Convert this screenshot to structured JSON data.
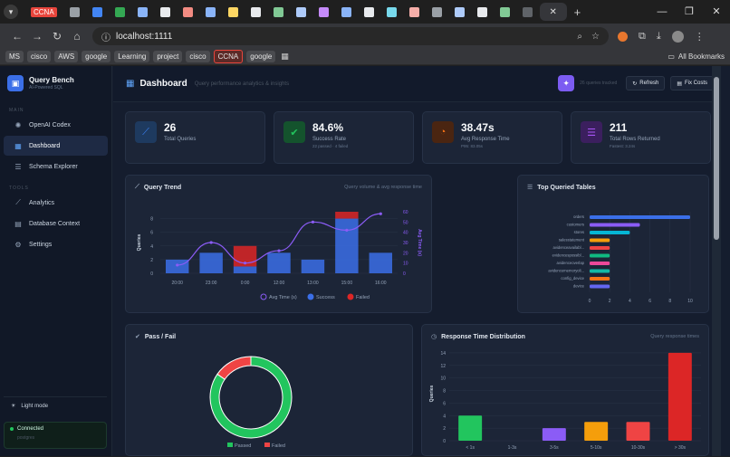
{
  "browser": {
    "tabs": [
      {
        "label": "CCNA",
        "type": "ccna"
      },
      {
        "label": "",
        "type": "site"
      },
      {
        "label": "",
        "type": "site"
      },
      {
        "label": "",
        "type": "site"
      },
      {
        "label": "",
        "type": "site"
      },
      {
        "label": "",
        "type": "site"
      },
      {
        "label": "",
        "type": "site"
      },
      {
        "label": "",
        "type": "site"
      },
      {
        "label": "",
        "type": "site"
      },
      {
        "label": "",
        "type": "site"
      },
      {
        "label": "",
        "type": "site"
      },
      {
        "label": "",
        "type": "site"
      },
      {
        "label": "",
        "type": "site"
      },
      {
        "label": "",
        "type": "site"
      },
      {
        "label": "",
        "type": "site"
      },
      {
        "label": "",
        "type": "site"
      },
      {
        "label": "",
        "type": "site"
      },
      {
        "label": "",
        "type": "site"
      },
      {
        "label": "",
        "type": "site"
      },
      {
        "label": "",
        "type": "site"
      },
      {
        "label": "",
        "type": "site"
      },
      {
        "label": "",
        "type": "site"
      }
    ],
    "url": "localhost:1111",
    "bookmarks": [
      "MS",
      "cisco",
      "AWS",
      "google",
      "Learning",
      "project",
      "cisco",
      "CCNA",
      "google"
    ],
    "all_bookmarks": "All Bookmarks"
  },
  "sidebar": {
    "brand_title": "Query Bench",
    "brand_subtitle": "AI-Powered SQL",
    "main_label": "MAIN",
    "tools_label": "TOOLS",
    "main_items": [
      {
        "label": "OpenAI Codex",
        "icon": "robot-icon"
      },
      {
        "label": "Dashboard",
        "icon": "grid-icon",
        "active": true
      },
      {
        "label": "Schema Explorer",
        "icon": "database-icon"
      }
    ],
    "tool_items": [
      {
        "label": "Analytics",
        "icon": "chart-icon"
      },
      {
        "label": "Database Context",
        "icon": "document-icon"
      },
      {
        "label": "Settings",
        "icon": "gear-icon"
      }
    ],
    "light_mode": "Light mode",
    "connection_status": "Connected",
    "connection_db": "postgres"
  },
  "header": {
    "title": "Dashboard",
    "subtitle": "Query performance analytics & insights",
    "queries_tracked": "26 queries tracked",
    "refresh": "Refresh",
    "fix_costs": "Fix Costs"
  },
  "stats": [
    {
      "value": "26",
      "label": "Total Queries",
      "sub": "",
      "color": "#3b82f6",
      "bg": "#1e3a5f",
      "icon": "chart-line-icon"
    },
    {
      "value": "84.6%",
      "label": "Success Rate",
      "sub": "22 passed · 4 failed",
      "color": "#22c55e",
      "bg": "#14532d",
      "icon": "check-icon"
    },
    {
      "value": "38.47s",
      "label": "Avg Response Time",
      "sub": "P95: 83.05s",
      "color": "#f97316",
      "bg": "#4a2511",
      "icon": "speedometer-icon"
    },
    {
      "value": "211",
      "label": "Total Rows Returned",
      "sub": "Fastest: 3.24s",
      "color": "#a855f7",
      "bg": "#3b1f5e",
      "icon": "list-icon"
    }
  ],
  "query_trend": {
    "title": "Query Trend",
    "subtitle": "Query volume & avg response time",
    "chart_data": {
      "type": "bar",
      "categories": [
        "20:00",
        "23:00",
        "0:00",
        "12:00",
        "13:00",
        "15:00",
        "16:00"
      ],
      "series": [
        {
          "name": "Success",
          "values": [
            2,
            3,
            1,
            3,
            2,
            8,
            3
          ],
          "color": "#3b6fe8"
        },
        {
          "name": "Failed",
          "values": [
            0,
            0,
            3,
            0,
            0,
            1,
            0
          ],
          "color": "#dc2626"
        },
        {
          "name": "Avg Time (s)",
          "values": [
            8,
            30,
            10,
            22,
            50,
            42,
            58
          ],
          "color": "#8b5cf6",
          "axis": "right"
        }
      ],
      "ylabel": "Queries",
      "y2label": "Avg Time (s)",
      "ylim": [
        0,
        9
      ],
      "y2lim": [
        0,
        60
      ],
      "yticks": [
        0,
        2,
        4,
        6,
        8
      ],
      "y2ticks": [
        0,
        10,
        20,
        30,
        40,
        50,
        60
      ],
      "legend": [
        "Avg Time (s)",
        "Success",
        "Failed"
      ],
      "legend_position": "bottom"
    }
  },
  "top_tables": {
    "title": "Top Queried Tables",
    "chart_data": {
      "type": "bar",
      "orientation": "horizontal",
      "categories": [
        "orders",
        "customers",
        "stores",
        "salesstatement",
        "avidenceavailabl...",
        "evidencespossibl...",
        "avidenceoverlap",
        "avidencememoryoli...",
        "config_device",
        "device"
      ],
      "values": [
        10,
        5,
        4,
        2,
        2,
        2,
        2,
        2,
        2,
        2
      ],
      "colors": [
        "#3b6fe8",
        "#8b5cf6",
        "#06b6d4",
        "#f59e0b",
        "#ef4444",
        "#10b981",
        "#ec4899",
        "#14b8a6",
        "#f97316",
        "#6366f1"
      ],
      "xlim": [
        0,
        10
      ],
      "xticks": [
        0,
        2,
        4,
        6,
        8,
        10
      ]
    }
  },
  "pass_fail": {
    "title": "Pass / Fail",
    "chart_data": {
      "type": "pie",
      "labels": [
        "Passed",
        "Failed"
      ],
      "values": [
        22,
        4
      ],
      "colors": [
        "#22c55e",
        "#ef4444"
      ],
      "legend_position": "bottom"
    }
  },
  "response_dist": {
    "title": "Response Time Distribution",
    "subtitle": "Query response times",
    "chart_data": {
      "type": "bar",
      "categories": [
        "< 1s",
        "1-3s",
        "3-5s",
        "5-10s",
        "10-30s",
        "> 30s"
      ],
      "values": [
        4,
        0,
        2,
        3,
        3,
        14
      ],
      "colors": [
        "#22c55e",
        "#3b6fe8",
        "#8b5cf6",
        "#f59e0b",
        "#ef4444",
        "#dc2626"
      ],
      "ylabel": "Queries",
      "ylim": [
        0,
        15
      ],
      "yticks": [
        0,
        2,
        4,
        6,
        8,
        10,
        12,
        14
      ]
    }
  }
}
